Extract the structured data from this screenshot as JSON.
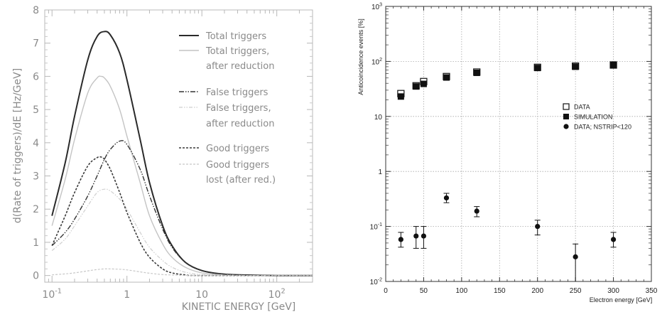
{
  "chart_data": [
    {
      "type": "line",
      "title": "",
      "xlabel": "KINETIC ENERGY  [GeV]",
      "ylabel": "d(Rate of triggers)/dE  [Hz/GeV]",
      "x_scale": "log",
      "xlim": [
        0.08,
        300
      ],
      "ylim": [
        -0.2,
        8
      ],
      "x_ticks": [
        {
          "value": 0.1,
          "base": "10",
          "exp": "-1"
        },
        {
          "value": 1,
          "base": "1",
          "exp": ""
        },
        {
          "value": 10,
          "base": "10",
          "exp": ""
        },
        {
          "value": 100,
          "base": "10",
          "exp": "2"
        }
      ],
      "y_ticks": [
        "0",
        "1",
        "2",
        "3",
        "4",
        "5",
        "6",
        "7",
        "8"
      ],
      "grid": false,
      "legend_position": "top-right",
      "series": [
        {
          "name": "Total triggers",
          "legend_lines": [
            "Total triggers"
          ],
          "color": "#2a2a2a",
          "width": 2,
          "dash": "",
          "points": [
            [
              0.1,
              1.8
            ],
            [
              0.15,
              3.4
            ],
            [
              0.2,
              4.8
            ],
            [
              0.3,
              6.5
            ],
            [
              0.4,
              7.2
            ],
            [
              0.5,
              7.35
            ],
            [
              0.6,
              7.25
            ],
            [
              0.8,
              6.7
            ],
            [
              1,
              5.9
            ],
            [
              1.5,
              4.1
            ],
            [
              2,
              2.8
            ],
            [
              3,
              1.5
            ],
            [
              4,
              0.9
            ],
            [
              6,
              0.4
            ],
            [
              10,
              0.15
            ],
            [
              20,
              0.04
            ],
            [
              50,
              0.01
            ],
            [
              100,
              0
            ],
            [
              300,
              0
            ]
          ]
        },
        {
          "name": "Total triggers, after reduction",
          "legend_lines": [
            "Total triggers,",
            "after reduction"
          ],
          "color": "#c4c4c4",
          "width": 1.4,
          "dash": "",
          "points": [
            [
              0.1,
              1.5
            ],
            [
              0.15,
              2.9
            ],
            [
              0.2,
              4.1
            ],
            [
              0.3,
              5.5
            ],
            [
              0.4,
              5.95
            ],
            [
              0.45,
              6.0
            ],
            [
              0.5,
              5.95
            ],
            [
              0.6,
              5.7
            ],
            [
              0.8,
              5.0
            ],
            [
              1,
              4.2
            ],
            [
              1.5,
              2.8
            ],
            [
              2,
              1.8
            ],
            [
              3,
              0.95
            ],
            [
              4,
              0.55
            ],
            [
              6,
              0.25
            ],
            [
              10,
              0.08
            ],
            [
              20,
              0.02
            ],
            [
              50,
              0
            ],
            [
              300,
              0
            ]
          ]
        },
        {
          "name": "False triggers",
          "legend_lines": [
            "False triggers"
          ],
          "color": "#333333",
          "width": 1.4,
          "dash": "7,2,1.5,2,1.5,2",
          "points": [
            [
              0.1,
              0.9
            ],
            [
              0.15,
              1.3
            ],
            [
              0.2,
              1.7
            ],
            [
              0.3,
              2.4
            ],
            [
              0.4,
              3.0
            ],
            [
              0.5,
              3.5
            ],
            [
              0.6,
              3.8
            ],
            [
              0.8,
              4.05
            ],
            [
              1,
              3.95
            ],
            [
              1.5,
              3.2
            ],
            [
              2,
              2.4
            ],
            [
              3,
              1.4
            ],
            [
              4,
              0.85
            ],
            [
              6,
              0.4
            ],
            [
              10,
              0.15
            ],
            [
              20,
              0.04
            ],
            [
              50,
              0.01
            ],
            [
              100,
              0
            ],
            [
              300,
              0
            ]
          ]
        },
        {
          "name": "False triggers, after reduction",
          "legend_lines": [
            "False triggers,",
            "after reduction"
          ],
          "color": "#cfcfcf",
          "width": 1.2,
          "dash": "5,2,1.5,2,1.5,2",
          "points": [
            [
              0.1,
              0.75
            ],
            [
              0.15,
              1.1
            ],
            [
              0.2,
              1.5
            ],
            [
              0.3,
              2.1
            ],
            [
              0.4,
              2.5
            ],
            [
              0.5,
              2.6
            ],
            [
              0.6,
              2.55
            ],
            [
              0.8,
              2.3
            ],
            [
              1,
              2.0
            ],
            [
              1.5,
              1.3
            ],
            [
              2,
              0.85
            ],
            [
              3,
              0.45
            ],
            [
              4,
              0.25
            ],
            [
              6,
              0.1
            ],
            [
              10,
              0.03
            ],
            [
              20,
              0.01
            ],
            [
              50,
              0
            ],
            [
              300,
              0
            ]
          ]
        },
        {
          "name": "Good triggers",
          "legend_lines": [
            "Good triggers"
          ],
          "color": "#3a3a3a",
          "width": 1.6,
          "dash": "3,2",
          "points": [
            [
              0.1,
              0.9
            ],
            [
              0.15,
              1.8
            ],
            [
              0.2,
              2.5
            ],
            [
              0.3,
              3.3
            ],
            [
              0.4,
              3.55
            ],
            [
              0.45,
              3.57
            ],
            [
              0.5,
              3.5
            ],
            [
              0.6,
              3.2
            ],
            [
              0.8,
              2.5
            ],
            [
              1,
              1.9
            ],
            [
              1.5,
              1.0
            ],
            [
              2,
              0.55
            ],
            [
              3,
              0.2
            ],
            [
              4,
              0.08
            ],
            [
              6,
              0.02
            ],
            [
              10,
              0
            ],
            [
              300,
              0
            ]
          ]
        },
        {
          "name": "Good triggers lost (after red.)",
          "legend_lines": [
            "Good triggers",
            "lost (after red.)"
          ],
          "color": "#c8c8c8",
          "width": 1.2,
          "dash": "3,2",
          "points": [
            [
              0.1,
              0.02
            ],
            [
              0.15,
              0.05
            ],
            [
              0.2,
              0.08
            ],
            [
              0.3,
              0.14
            ],
            [
              0.4,
              0.18
            ],
            [
              0.5,
              0.2
            ],
            [
              0.6,
              0.2
            ],
            [
              0.8,
              0.19
            ],
            [
              1,
              0.17
            ],
            [
              1.5,
              0.11
            ],
            [
              2,
              0.07
            ],
            [
              3,
              0.03
            ],
            [
              5,
              0.01
            ],
            [
              10,
              0
            ],
            [
              300,
              0
            ]
          ]
        }
      ]
    },
    {
      "type": "scatter",
      "title": "",
      "xlabel": "Electron energy [GeV]",
      "ylabel": "Anticoincidence events [%]",
      "y_scale": "log",
      "xlim": [
        0,
        350
      ],
      "ylim": [
        0.01,
        1000
      ],
      "x_ticks": [
        "0",
        "50",
        "100",
        "150",
        "200",
        "250",
        "300",
        "350"
      ],
      "y_ticks": [
        {
          "value": 0.01,
          "base": "10",
          "exp": "-2"
        },
        {
          "value": 0.1,
          "base": "10",
          "exp": "-1"
        },
        {
          "value": 1,
          "base": "1",
          "exp": ""
        },
        {
          "value": 10,
          "base": "10",
          "exp": ""
        },
        {
          "value": 100,
          "base": "10",
          "exp": "2"
        },
        {
          "value": 1000,
          "base": "10",
          "exp": "3"
        }
      ],
      "grid": true,
      "legend_position": "right",
      "series": [
        {
          "name": "DATA",
          "marker": "open-square",
          "points": [
            [
              20,
              26
            ],
            [
              40,
              36
            ],
            [
              50,
              43
            ],
            [
              80,
              53
            ],
            [
              120,
              64
            ],
            [
              200,
              78
            ],
            [
              250,
              82
            ],
            [
              300,
              86
            ]
          ]
        },
        {
          "name": "SIMULATION",
          "marker": "filled-square",
          "points": [
            [
              20,
              23
            ],
            [
              40,
              35
            ],
            [
              50,
              39
            ],
            [
              80,
              51
            ],
            [
              120,
              62
            ],
            [
              200,
              76
            ],
            [
              250,
              80
            ],
            [
              300,
              85
            ]
          ]
        },
        {
          "name": "DATA; NSTRIP<120",
          "marker": "filled-circle",
          "points": [
            {
              "x": 20,
              "y": 0.058,
              "low": 0.042,
              "high": 0.078
            },
            {
              "x": 40,
              "y": 0.067,
              "low": 0.04,
              "high": 0.1
            },
            {
              "x": 50,
              "y": 0.067,
              "low": 0.04,
              "high": 0.1
            },
            {
              "x": 80,
              "y": 0.33,
              "low": 0.27,
              "high": 0.4
            },
            {
              "x": 120,
              "y": 0.19,
              "low": 0.15,
              "high": 0.23
            },
            {
              "x": 200,
              "y": 0.1,
              "low": 0.07,
              "high": 0.13
            },
            {
              "x": 250,
              "y": 0.028,
              "low": 0.01,
              "high": 0.048
            },
            {
              "x": 300,
              "y": 0.058,
              "low": 0.042,
              "high": 0.078
            }
          ]
        }
      ]
    }
  ]
}
